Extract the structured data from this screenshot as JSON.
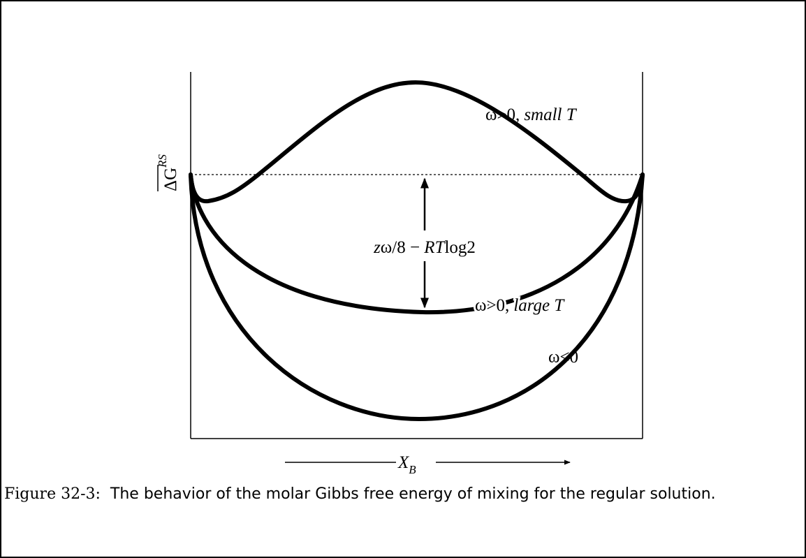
{
  "figure": {
    "curve_labels": [
      {
        "symbol": "ω>0,",
        "condition": "small T"
      },
      {
        "symbol": "ω>0,",
        "condition": "large T"
      },
      {
        "symbol": "ω<0"
      }
    ],
    "y_label": {
      "base": "ΔG",
      "superscript": "RS"
    },
    "x_label": {
      "base": "X",
      "subscript": "B"
    },
    "gap_label": [
      "z",
      "ω/8 − ",
      "RT",
      "log2"
    ],
    "caption": {
      "number": "Figure 32-3:",
      "text": "The behavior of the molar Gibbs free energy of mixing for the regular solution."
    }
  }
}
